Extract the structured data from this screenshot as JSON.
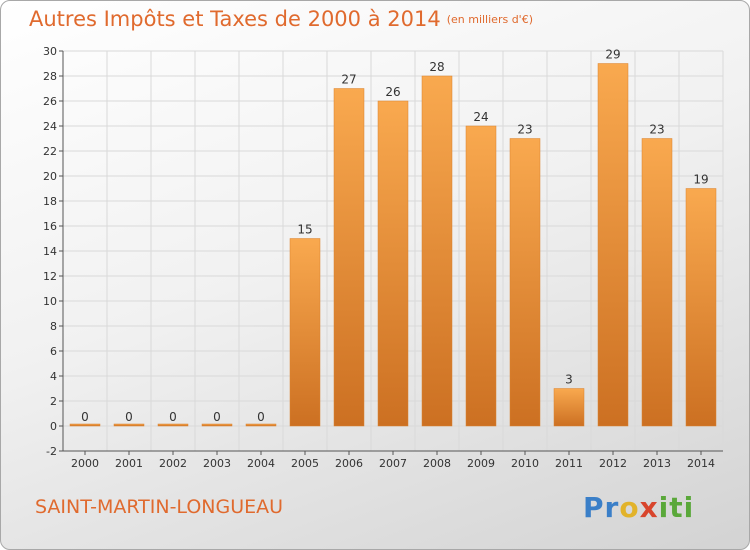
{
  "title": "Autres Impôts et Taxes de 2000 à 2014",
  "subtitle": "(en milliers d'€)",
  "commune": "SAINT-MARTIN-LONGUEAU",
  "brand": {
    "text": "Proxiti"
  },
  "colors": {
    "bar_light": "#f9a94f",
    "bar_dark": "#cc7022",
    "title": "#e06a2e"
  },
  "chart_data": {
    "type": "bar",
    "categories": [
      "2000",
      "2001",
      "2002",
      "2003",
      "2004",
      "2005",
      "2006",
      "2007",
      "2008",
      "2009",
      "2010",
      "2011",
      "2012",
      "2013",
      "2014"
    ],
    "values": [
      0,
      0,
      0,
      0,
      0,
      15,
      27,
      26,
      28,
      24,
      23,
      3,
      29,
      23,
      19
    ],
    "data_labels": [
      "0",
      "0",
      "0",
      "0",
      "0",
      "15",
      "27",
      "26",
      "28",
      "24",
      "23",
      "3",
      "29",
      "23",
      "19"
    ],
    "ylim": [
      -2,
      30
    ],
    "yticks": [
      -2,
      0,
      2,
      4,
      6,
      8,
      10,
      12,
      14,
      16,
      18,
      20,
      22,
      24,
      26,
      28,
      30
    ],
    "grid": true
  }
}
